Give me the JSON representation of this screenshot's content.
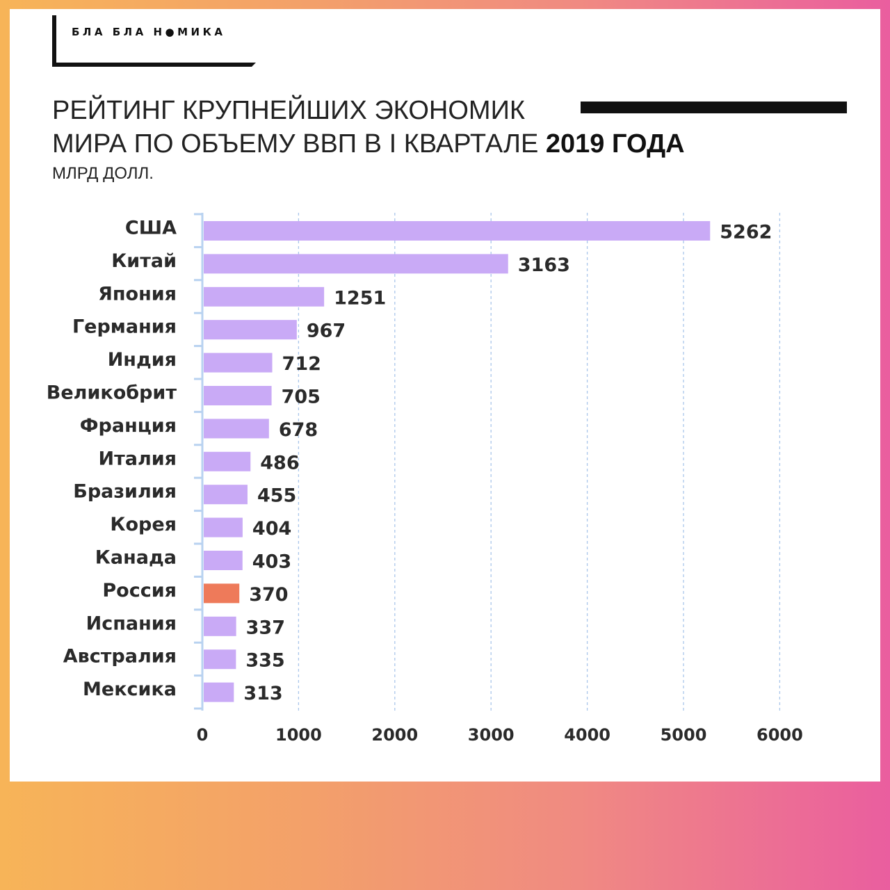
{
  "brand": {
    "logo_text": "БЛА БЛА Н●МИКА"
  },
  "header": {
    "title_line1": "РЕЙТИНГ КРУПНЕЙШИХ ЭКОНОМИК",
    "title_line2_plain": "МИРА ПО ОБЪЕМУ ВВП В I КВАРТАЛЕ",
    "title_line2_bold": "2019 ГОДА",
    "unit": "МЛРД ДОЛЛ."
  },
  "chart_data": {
    "type": "bar",
    "orientation": "horizontal",
    "title": "РЕЙТИНГ КРУПНЕЙШИХ ЭКОНОМИК МИРА ПО ОБЪЕМУ ВВП В I КВАРТАЛЕ 2019 ГОДА",
    "unit": "МЛРД ДОЛЛ.",
    "categories": [
      "США",
      "Китай",
      "Япония",
      "Германия",
      "Индия",
      "Великобрит",
      "Франция",
      "Италия",
      "Бразилия",
      "Корея",
      "Канада",
      "Россия",
      "Испания",
      "Австралия",
      "Мексика"
    ],
    "values": [
      5262,
      3163,
      1251,
      967,
      712,
      705,
      678,
      486,
      455,
      404,
      403,
      370,
      337,
      335,
      313
    ],
    "value_labels": [
      "5262",
      "3163",
      "1251",
      "967",
      "712",
      "705",
      "678",
      "486",
      "455",
      "404",
      "403",
      "370",
      "337",
      "335",
      "313"
    ],
    "highlight": "Россия",
    "bar_color": "#c9aaf6",
    "highlight_color": "#ee7a5a",
    "xlim": [
      0,
      6000
    ],
    "xticks": [
      0,
      1000,
      2000,
      3000,
      4000,
      5000,
      6000
    ],
    "grid": "vertical-dashed",
    "legend": "none"
  }
}
